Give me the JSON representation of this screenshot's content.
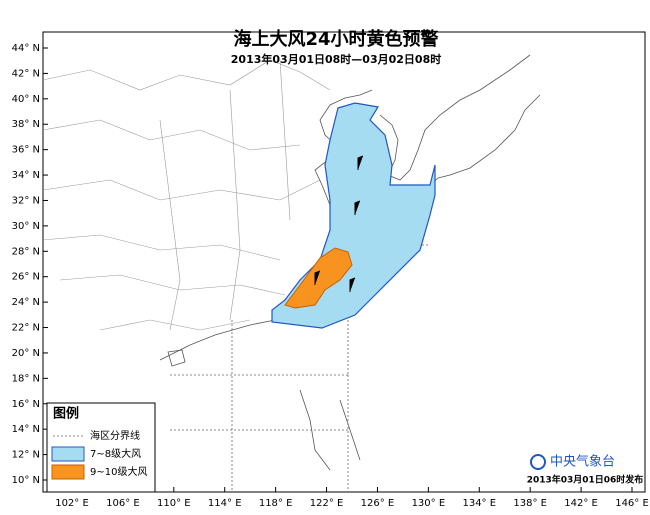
{
  "map": {
    "title": "海上大风24小时黄色预警",
    "subtitle": "2013年03月01日08时—03月02日08时",
    "lat_ticks": [
      {
        "value": 44,
        "label": "44° N"
      },
      {
        "value": 42,
        "label": "42° N"
      },
      {
        "value": 40,
        "label": "40° N"
      },
      {
        "value": 38,
        "label": "38° N"
      },
      {
        "value": 36,
        "label": "36° N"
      },
      {
        "value": 34,
        "label": "34° N"
      },
      {
        "value": 32,
        "label": "32° N"
      },
      {
        "value": 30,
        "label": "30° N"
      },
      {
        "value": 28,
        "label": "28° N"
      },
      {
        "value": 26,
        "label": "26° N"
      },
      {
        "value": 24,
        "label": "24° N"
      },
      {
        "value": 22,
        "label": "22° N"
      },
      {
        "value": 20,
        "label": "20° N"
      },
      {
        "value": 18,
        "label": "18° N"
      },
      {
        "value": 16,
        "label": "16° N"
      },
      {
        "value": 14,
        "label": "14° N"
      },
      {
        "value": 12,
        "label": "12° N"
      },
      {
        "value": 10,
        "label": "10° N"
      }
    ],
    "lon_ticks": [
      {
        "value": 102,
        "label": "102° E"
      },
      {
        "value": 106,
        "label": "106° E"
      },
      {
        "value": 110,
        "label": "110° E"
      },
      {
        "value": 114,
        "label": "114° E"
      },
      {
        "value": 118,
        "label": "118° E"
      },
      {
        "value": 122,
        "label": "122° E"
      },
      {
        "value": 126,
        "label": "126° E"
      },
      {
        "value": 130,
        "label": "130° E"
      },
      {
        "value": 134,
        "label": "134° E"
      },
      {
        "value": 138,
        "label": "138° E"
      },
      {
        "value": 142,
        "label": "142° E"
      },
      {
        "value": 146,
        "label": "146° E"
      }
    ],
    "legend": {
      "title": "图例",
      "items": [
        "海区分界线",
        "7~8级大风",
        "9~10级大风"
      ]
    },
    "logo": "中央气象台",
    "issued": "2013年03月01日06时发布"
  }
}
